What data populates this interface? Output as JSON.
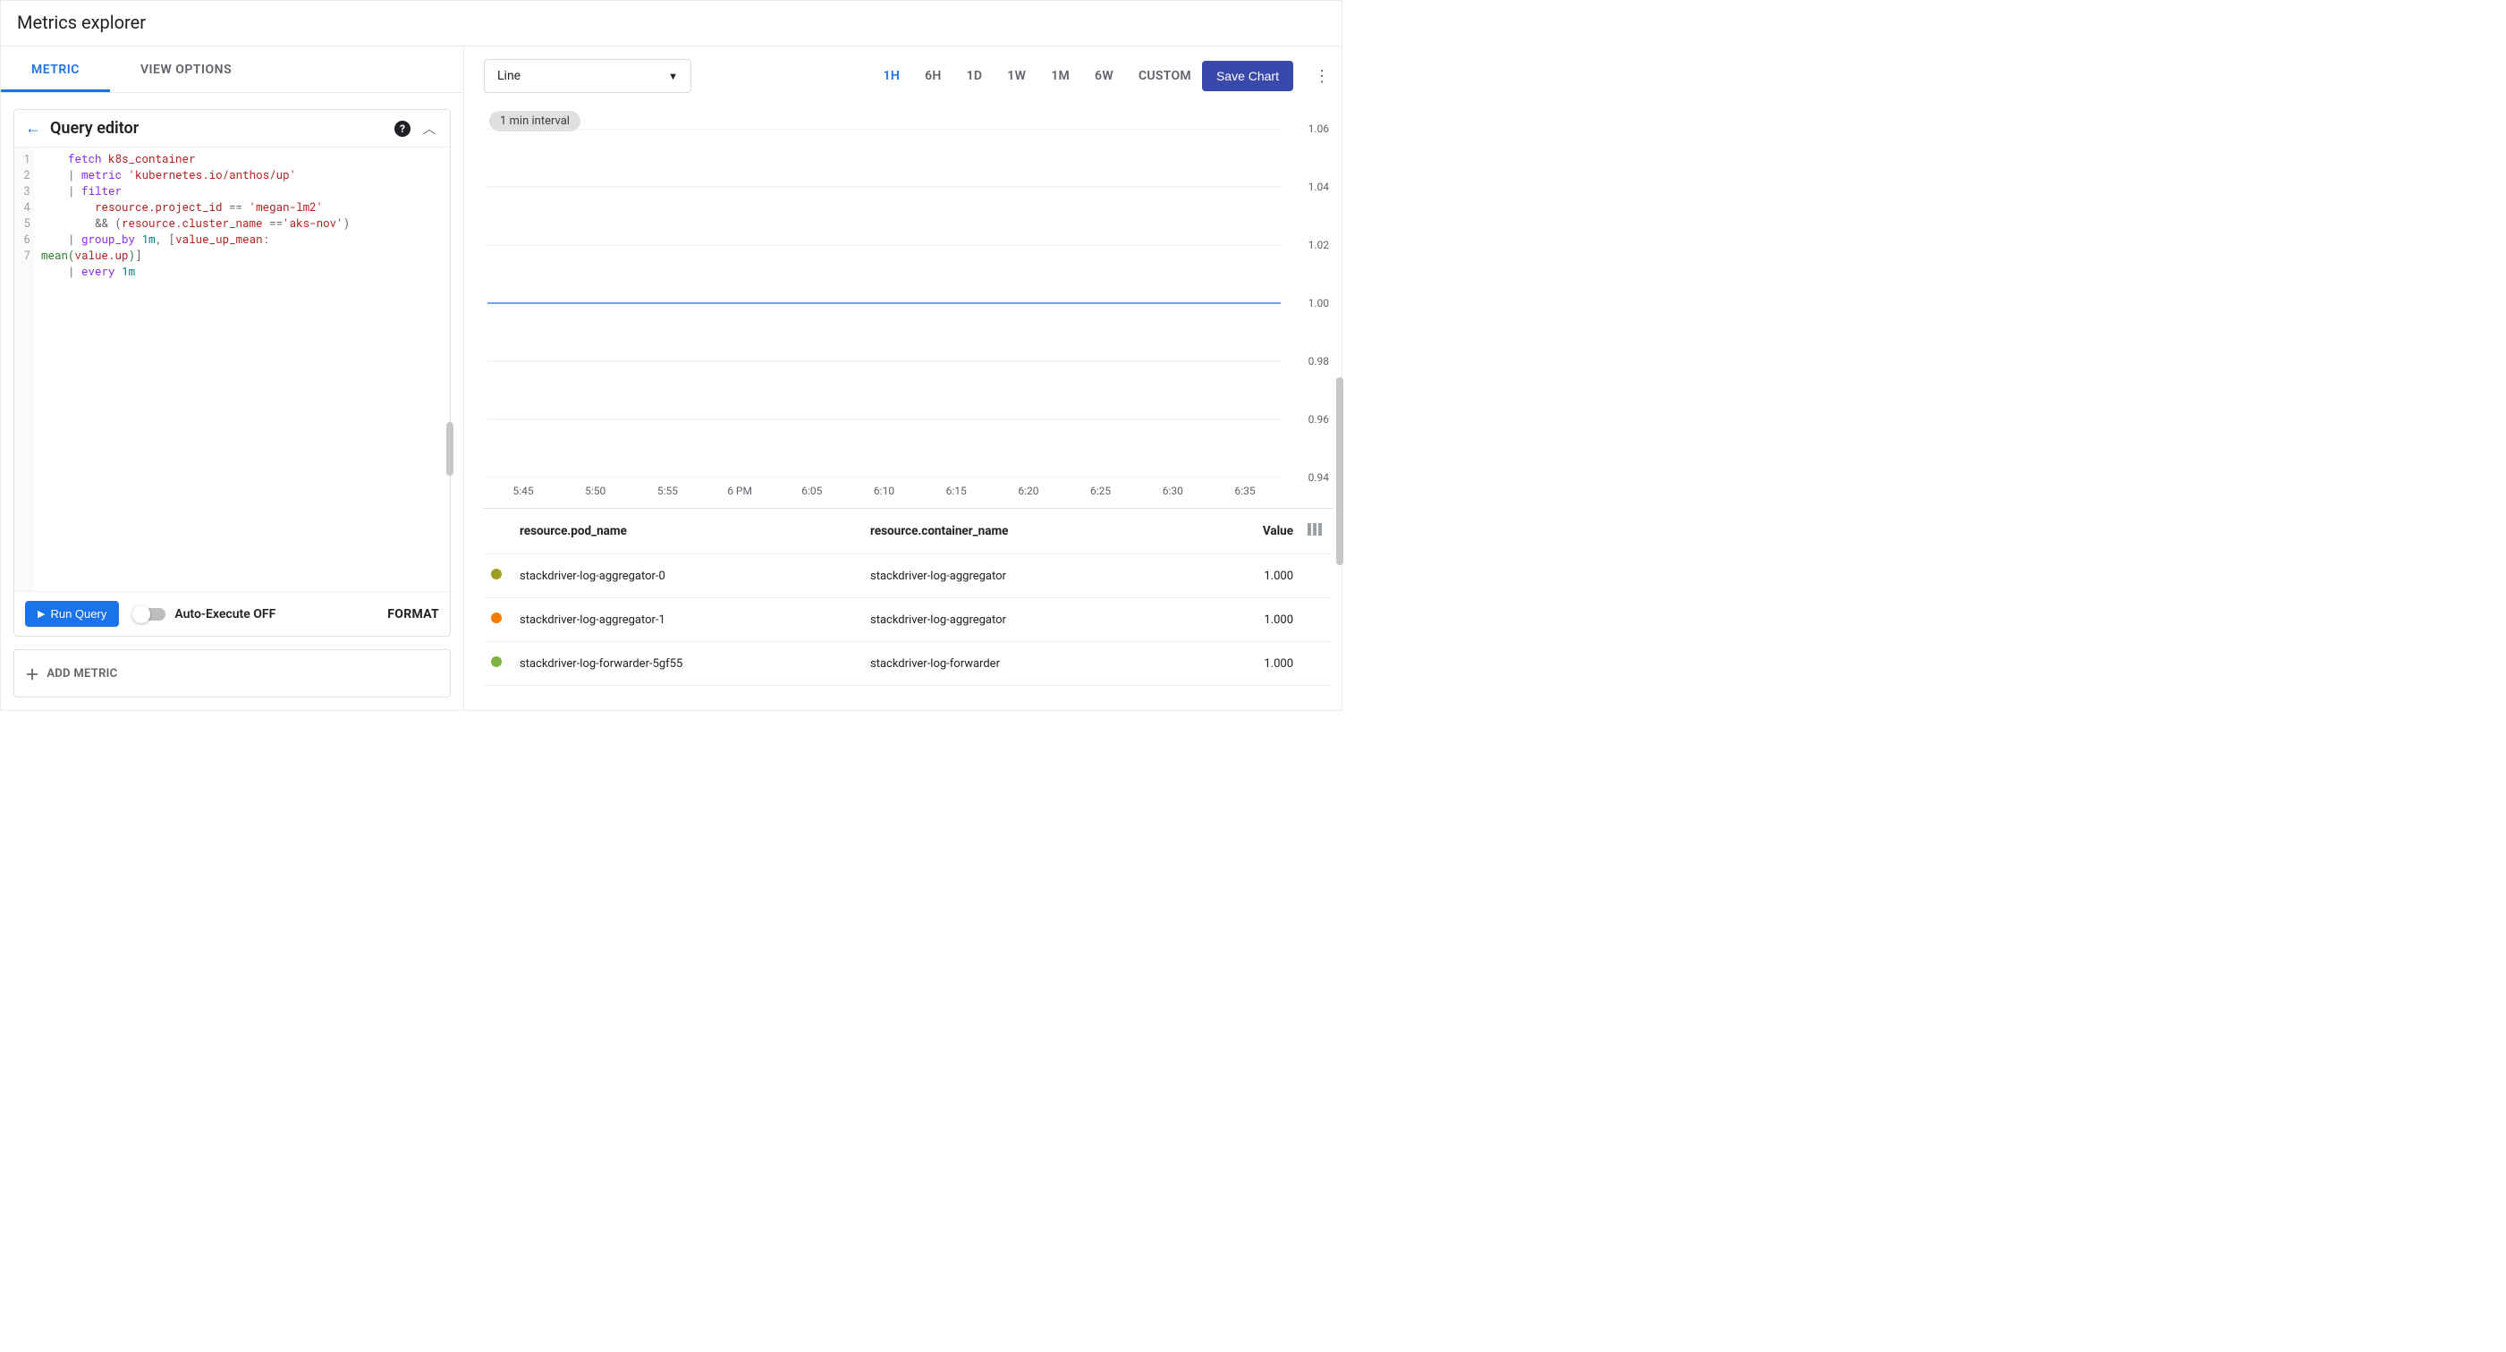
{
  "page_title": "Metrics explorer",
  "tabs": {
    "metric": "METRIC",
    "view_options": "VIEW OPTIONS",
    "active": "metric"
  },
  "editor": {
    "title": "Query editor",
    "code_tokens": [
      [
        {
          "t": "    ",
          "c": ""
        },
        {
          "t": "fetch",
          "c": "kw"
        },
        {
          "t": " ",
          "c": ""
        },
        {
          "t": "k8s_container",
          "c": "id"
        }
      ],
      [
        {
          "t": "    ",
          "c": ""
        },
        {
          "t": "|",
          "c": "op"
        },
        {
          "t": " ",
          "c": ""
        },
        {
          "t": "metric",
          "c": "kw"
        },
        {
          "t": " ",
          "c": ""
        },
        {
          "t": "'kubernetes.io/anthos/up'",
          "c": "str"
        }
      ],
      [
        {
          "t": "    ",
          "c": ""
        },
        {
          "t": "|",
          "c": "op"
        },
        {
          "t": " ",
          "c": ""
        },
        {
          "t": "filter",
          "c": "kw"
        }
      ],
      [
        {
          "t": "        ",
          "c": ""
        },
        {
          "t": "resource.project_id",
          "c": "id"
        },
        {
          "t": " == ",
          "c": "op"
        },
        {
          "t": "'megan-lm2'",
          "c": "str"
        }
      ],
      [
        {
          "t": "        ",
          "c": ""
        },
        {
          "t": "&& (",
          "c": "op"
        },
        {
          "t": "resource.cluster_name",
          "c": "id"
        },
        {
          "t": " ==",
          "c": "op"
        },
        {
          "t": "'aks-nov'",
          "c": "str"
        },
        {
          "t": ")",
          "c": "op"
        }
      ],
      [
        {
          "t": "    ",
          "c": ""
        },
        {
          "t": "|",
          "c": "op"
        },
        {
          "t": " ",
          "c": ""
        },
        {
          "t": "group_by",
          "c": "kw"
        },
        {
          "t": " ",
          "c": ""
        },
        {
          "t": "1m",
          "c": "num"
        },
        {
          "t": ", [",
          "c": "op"
        },
        {
          "t": "value_up_mean",
          "c": "id"
        },
        {
          "t": ":\n",
          "c": "op"
        },
        {
          "t": "mean",
          "c": "fn"
        },
        {
          "t": "(",
          "c": "paren"
        },
        {
          "t": "value.up",
          "c": "id"
        },
        {
          "t": ")",
          "c": "paren"
        },
        {
          "t": "]",
          "c": "op"
        }
      ],
      [
        {
          "t": "    ",
          "c": ""
        },
        {
          "t": "|",
          "c": "op"
        },
        {
          "t": " ",
          "c": ""
        },
        {
          "t": "every",
          "c": "kw"
        },
        {
          "t": " ",
          "c": ""
        },
        {
          "t": "1m",
          "c": "num"
        }
      ]
    ],
    "line_numbers": [
      "1",
      "2",
      "3",
      "4",
      "5",
      "6",
      "7"
    ],
    "run_button": "Run Query",
    "auto_execute_label": "Auto-Execute OFF",
    "format_label": "FORMAT",
    "add_metric_label": "ADD METRIC"
  },
  "toolbar": {
    "chart_type": "Line",
    "time_ranges": [
      "1H",
      "6H",
      "1D",
      "1W",
      "1M",
      "6W",
      "CUSTOM"
    ],
    "time_active": "1H",
    "save_button": "Save Chart"
  },
  "chart": {
    "interval_label": "1 min interval",
    "y_ticks": [
      {
        "label": "1.06",
        "v": 1.06
      },
      {
        "label": "1.04",
        "v": 1.04
      },
      {
        "label": "1.02",
        "v": 1.02
      },
      {
        "label": "1.00",
        "v": 1.0
      },
      {
        "label": "0.98",
        "v": 0.98
      },
      {
        "label": "0.96",
        "v": 0.96
      },
      {
        "label": "0.94",
        "v": 0.94
      }
    ],
    "y_min": 0.94,
    "y_max": 1.06,
    "x_ticks": [
      "5:45",
      "5:50",
      "5:55",
      "6 PM",
      "6:05",
      "6:10",
      "6:15",
      "6:20",
      "6:25",
      "6:30",
      "6:35"
    ],
    "series_value": 1.0,
    "line_color": "#4285f4",
    "line_width": 1.5,
    "grid_color": "#e8eaed",
    "background_color": "#ffffff",
    "axis_label_color": "#5f6368",
    "axis_fontsize": 12
  },
  "table": {
    "columns": {
      "pod": "resource.pod_name",
      "container": "resource.container_name",
      "value": "Value"
    },
    "rows": [
      {
        "color": "#9e9d24",
        "pod": "stackdriver-log-aggregator-0",
        "container": "stackdriver-log-aggregator",
        "value": "1.000"
      },
      {
        "color": "#f57c00",
        "pod": "stackdriver-log-aggregator-1",
        "container": "stackdriver-log-aggregator",
        "value": "1.000"
      },
      {
        "color": "#7cb342",
        "pod": "stackdriver-log-forwarder-5gf55",
        "container": "stackdriver-log-forwarder",
        "value": "1.000"
      }
    ]
  }
}
